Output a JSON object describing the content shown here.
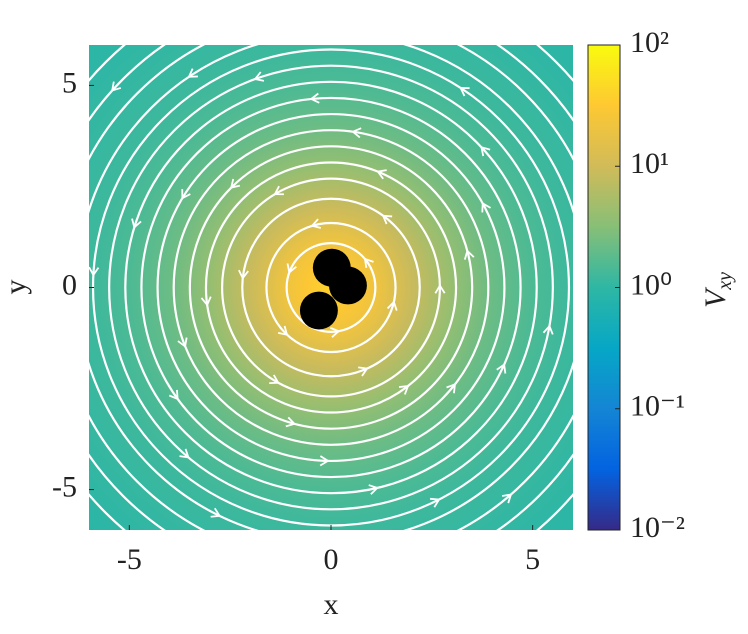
{
  "chart_data": {
    "type": "heatmap",
    "xlabel": "x",
    "ylabel": "y",
    "xlim": [
      -6,
      6
    ],
    "ylim": [
      -6,
      6
    ],
    "xticks": [
      -5,
      0,
      5
    ],
    "yticks": [
      -5,
      0,
      5
    ],
    "field": {
      "center": [
        0,
        0
      ],
      "r": [
        0,
        0.6,
        1.2,
        2,
        3,
        4,
        5,
        6,
        8.5
      ],
      "values": [
        40,
        30,
        20,
        9,
        4,
        2.2,
        1.5,
        1.2,
        0.9
      ]
    },
    "colormap": [
      "#352a87",
      "#0363e1",
      "#1485d4",
      "#06a7c6",
      "#2eb7a4",
      "#87bf77",
      "#d1bb59",
      "#fec832",
      "#f9fb0e"
    ],
    "colorbar": {
      "scale": "log",
      "lim": [
        0.01,
        100
      ],
      "ticks": [
        {
          "value": 100,
          "label": "10²"
        },
        {
          "value": 10,
          "label": "10¹"
        },
        {
          "value": 1,
          "label": "10⁰"
        },
        {
          "value": 0.1,
          "label": "10⁻¹"
        },
        {
          "value": 0.01,
          "label": "10⁻²"
        }
      ],
      "label": {
        "main": "V",
        "sub": "xy"
      }
    },
    "streamlines": {
      "color": "#ffffff",
      "direction": "counterclockwise",
      "radii": [
        1.1,
        1.6,
        2.2,
        2.7,
        3.1,
        3.5,
        3.9,
        4.3,
        4.7,
        5.1,
        5.5,
        5.9,
        6.3,
        6.8,
        7.3,
        7.9
      ]
    },
    "bodies": {
      "color": "#000000",
      "x": [
        0.02,
        0.42,
        -0.3
      ],
      "y": [
        0.49,
        0.05,
        -0.57
      ],
      "radius": 0.47
    }
  }
}
